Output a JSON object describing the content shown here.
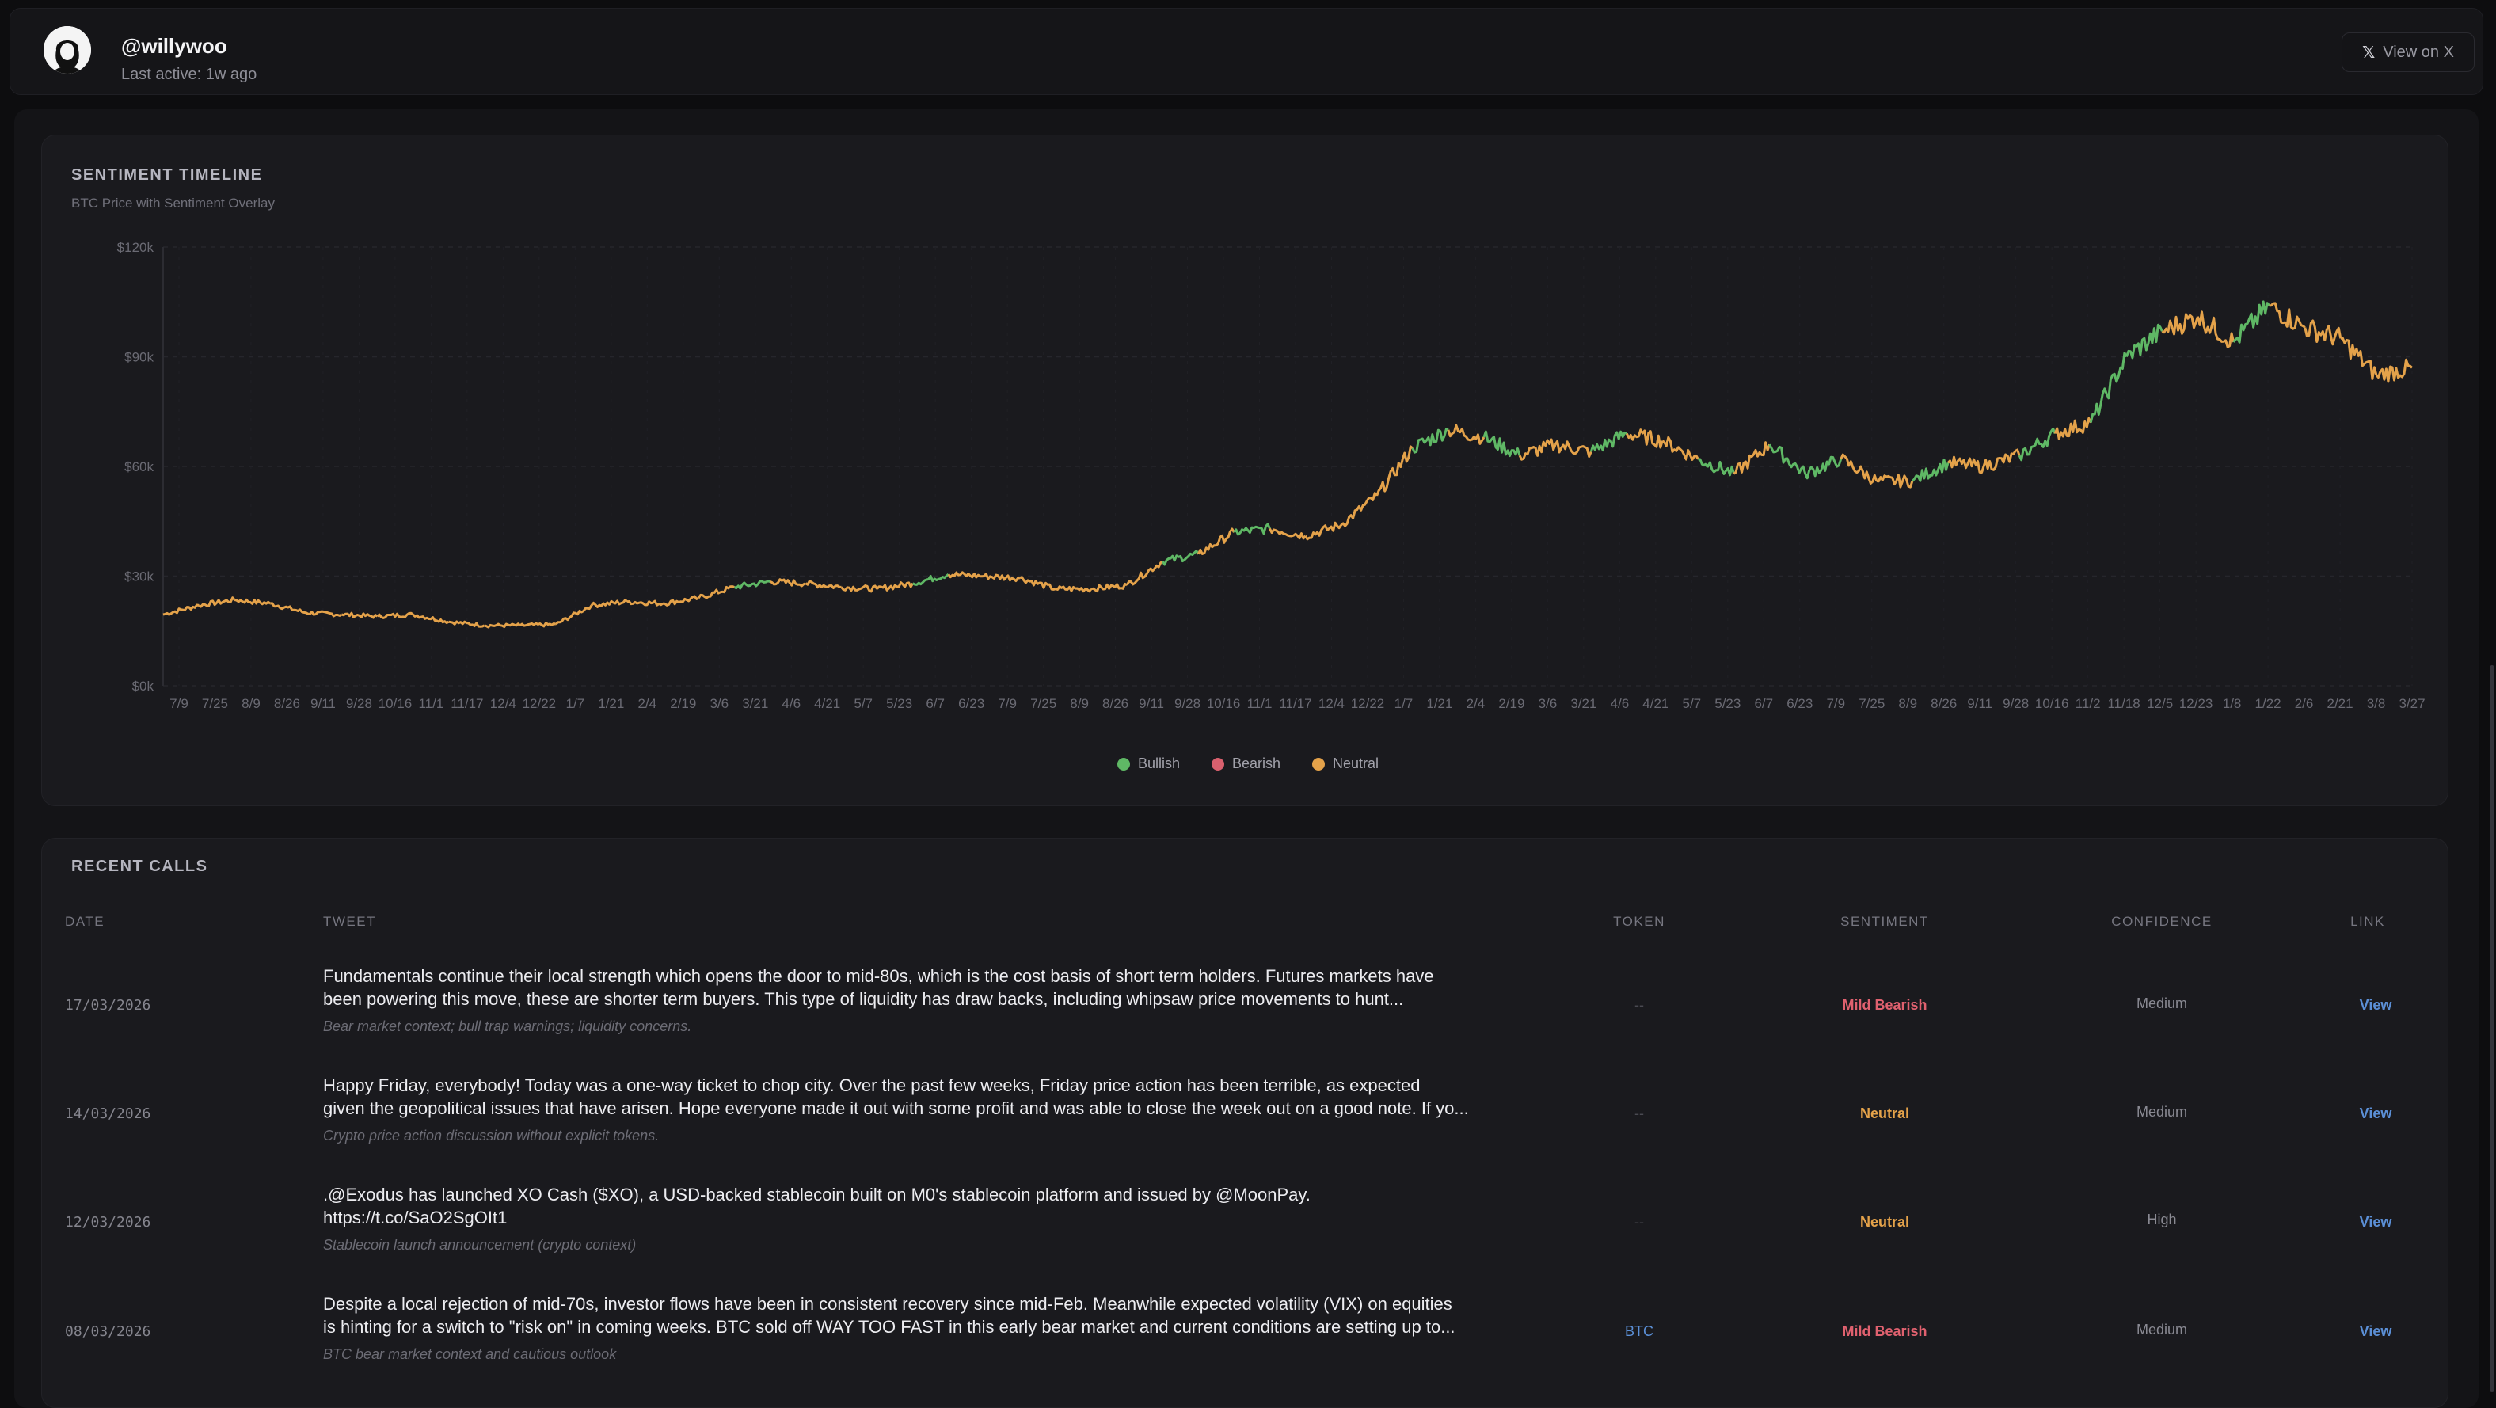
{
  "profile": {
    "handle": "@willywoo",
    "last_active": "Last active: 1w ago",
    "view_label": "View on X"
  },
  "timeline": {
    "title": "SENTIMENT TIMELINE",
    "subtitle": "BTC Price with Sentiment Overlay",
    "legend": [
      {
        "label": "Bullish",
        "color": "#5fb865"
      },
      {
        "label": "Bearish",
        "color": "#d9606e"
      },
      {
        "label": "Neutral",
        "color": "#e4a24a"
      }
    ]
  },
  "chart_data": {
    "type": "line",
    "ylim": [
      0,
      120000
    ],
    "y_ticks": [
      "$0k",
      "$30k",
      "$60k",
      "$90k",
      "$120k"
    ],
    "y_tick_values": [
      0,
      30000,
      60000,
      90000,
      120000
    ],
    "x_ticks": [
      "7/9",
      "7/25",
      "8/9",
      "8/26",
      "9/11",
      "9/28",
      "10/16",
      "11/1",
      "11/17",
      "12/4",
      "12/22",
      "1/7",
      "1/21",
      "2/4",
      "2/19",
      "3/6",
      "3/21",
      "4/6",
      "4/21",
      "5/7",
      "5/23",
      "6/7",
      "6/23",
      "7/9",
      "7/25",
      "8/9",
      "8/26",
      "9/11",
      "9/28",
      "10/16",
      "11/1",
      "11/17",
      "12/4",
      "12/22",
      "1/7",
      "1/21",
      "2/4",
      "2/19",
      "3/6",
      "3/21",
      "4/6",
      "4/21",
      "5/7",
      "5/23",
      "6/7",
      "6/23",
      "7/9",
      "7/25",
      "8/9",
      "8/26",
      "9/11",
      "9/28",
      "10/16",
      "11/2",
      "11/18",
      "12/5",
      "12/23",
      "1/8",
      "1/22",
      "2/6",
      "2/21",
      "3/8",
      "3/27"
    ],
    "series": [
      {
        "values": [
          19500,
          22000,
          23500,
          22500,
          20000,
          19500,
          19000,
          19500,
          17500,
          16500,
          16500,
          16800,
          22000,
          23000,
          22500,
          24000,
          27000,
          28500,
          28000,
          27000,
          26500,
          28000,
          30500,
          30000,
          29500,
          26500,
          26500,
          27500,
          34000,
          36000,
          42000,
          43000,
          41000,
          44000,
          52000,
          65000,
          70000,
          68000,
          63000,
          66000,
          64000,
          69000,
          67000,
          62000,
          58000,
          66000,
          58000,
          62000,
          56000,
          56000,
          61000,
          60000,
          63000,
          69000,
          72000,
          90000,
          97000,
          101000,
          94000,
          104000,
          98000,
          95000,
          85000,
          87000
        ],
        "sentiment": [
          "neutral",
          "neutral",
          "neutral",
          "neutral",
          "neutral",
          "neutral",
          "neutral",
          "neutral",
          "neutral",
          "neutral",
          "neutral",
          "neutral",
          "neutral",
          "neutral",
          "neutral",
          "neutral",
          "bullish",
          "neutral",
          "neutral",
          "neutral",
          "neutral",
          "bullish",
          "neutral",
          "neutral",
          "neutral",
          "neutral",
          "neutral",
          "neutral",
          "bullish",
          "neutral",
          "bullish",
          "neutral",
          "neutral",
          "neutral",
          "neutral",
          "bullish",
          "neutral",
          "bullish",
          "neutral",
          "neutral",
          "bullish",
          "neutral",
          "neutral",
          "bullish",
          "neutral",
          "bullish",
          "bullish",
          "neutral",
          "neutral",
          "bullish",
          "neutral",
          "neutral",
          "bullish",
          "neutral",
          "bullish",
          "bullish",
          "neutral",
          "neutral",
          "bullish",
          "neutral",
          "neutral",
          "neutral",
          "neutral",
          "neutral"
        ]
      }
    ]
  },
  "calls": {
    "title": "RECENT CALLS",
    "headers": {
      "date": "DATE",
      "tweet": "TWEET",
      "token": "TOKEN",
      "sentiment": "SENTIMENT",
      "confidence": "CONFIDENCE",
      "link": "LINK"
    },
    "rows": [
      {
        "date": "17/03/2026",
        "tweet_l1": "Fundamentals continue their local strength which opens the door to mid-80s, which is the cost basis of short term holders. Futures markets have",
        "tweet_l2": "been powering this move, these are shorter term buyers. This type of liquidity has draw backs, including whipsaw price movements to hunt...",
        "note": "Bear market context; bull trap warnings; liquidity concerns.",
        "token": "--",
        "sentiment": "Mild Bearish",
        "sentiment_color": "#e0616f",
        "confidence": "Medium",
        "link": "View"
      },
      {
        "date": "14/03/2026",
        "tweet_l1": "Happy Friday, everybody! Today was a one-way ticket to chop city. Over the past few weeks, Friday price action has been terrible, as expected",
        "tweet_l2": "given the geopolitical issues that have arisen. Hope everyone made it out with some profit and was able to close the week out on a good note. If yo...",
        "note": "Crypto price action discussion without explicit tokens.",
        "token": "--",
        "sentiment": "Neutral",
        "sentiment_color": "#e4a24a",
        "confidence": "Medium",
        "link": "View"
      },
      {
        "date": "12/03/2026",
        "tweet_l1": ".@Exodus has launched XO Cash ($XO), a USD-backed stablecoin built on M0's stablecoin platform and issued by @MoonPay.",
        "tweet_l2": "https://t.co/SaO2SgOIt1",
        "note": "Stablecoin launch announcement (crypto context)",
        "token": "--",
        "sentiment": "Neutral",
        "sentiment_color": "#e4a24a",
        "confidence": "High",
        "link": "View"
      },
      {
        "date": "08/03/2026",
        "tweet_l1": "Despite a local rejection of mid-70s, investor flows have been in consistent recovery since mid-Feb. Meanwhile expected volatility (VIX) on equities",
        "tweet_l2": "is hinting for a switch to \"risk on\" in coming weeks. BTC sold off WAY TOO FAST in this early bear market and current conditions are setting up to...",
        "note": "BTC bear market context and cautious outlook",
        "token": "BTC",
        "sentiment": "Mild Bearish",
        "sentiment_color": "#e0616f",
        "confidence": "Medium",
        "link": "View"
      }
    ]
  }
}
